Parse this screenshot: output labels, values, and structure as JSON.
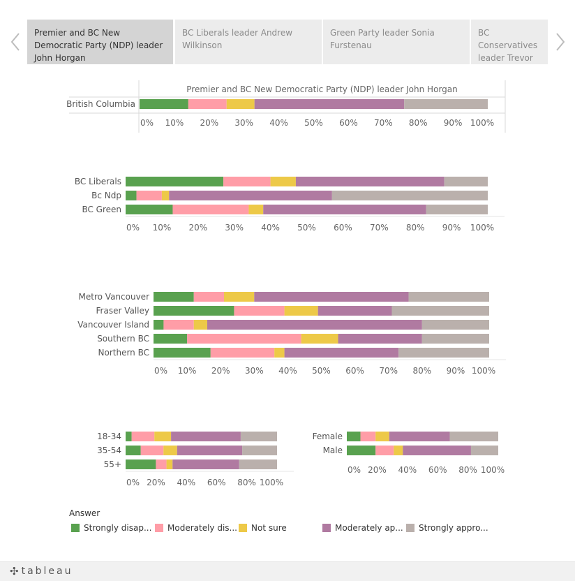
{
  "tabs": [
    {
      "label": "Premier and BC New Democratic Party (NDP) leader John Horgan",
      "active": true
    },
    {
      "label": "BC Liberals leader Andrew Wilkinson",
      "active": false
    },
    {
      "label": "Green Party leader Sonia Furstenau",
      "active": false
    },
    {
      "label": "BC Conservatives leader Trevor Bolin",
      "active": false
    }
  ],
  "nav": {
    "prev_icon": "chevron-left-icon",
    "next_icon": "chevron-right-icon"
  },
  "colors": {
    "strongly_disapprove": "#59a14f",
    "moderately_disapprove": "#ff9da7",
    "not_sure": "#edc948",
    "moderately_approve": "#b07aa1",
    "strongly_approve": "#bab0ac"
  },
  "legend": {
    "title": "Answer",
    "items": [
      {
        "label": "Strongly disap...",
        "color": "#59a14f"
      },
      {
        "label": "Moderately dis...",
        "color": "#ff9da7"
      },
      {
        "label": "Not sure",
        "color": "#edc948"
      },
      {
        "label": "Moderately ap...",
        "color": "#b07aa1"
      },
      {
        "label": "Strongly appro...",
        "color": "#bab0ac"
      }
    ]
  },
  "footer": {
    "brand": "tableau",
    "logo_icon": "tableau-logo-icon"
  },
  "chart_data": [
    {
      "type": "bar",
      "stacked": "percent",
      "orientation": "horizontal",
      "title": "Premier and BC New Democratic Party (NDP) leader John Horgan",
      "categories": [
        "British Columbia"
      ],
      "series": [
        {
          "name": "Strongly disap...",
          "values": [
            14
          ]
        },
        {
          "name": "Moderately dis...",
          "values": [
            11
          ]
        },
        {
          "name": "Not sure",
          "values": [
            8
          ]
        },
        {
          "name": "Moderately ap...",
          "values": [
            43
          ]
        },
        {
          "name": "Strongly appro...",
          "values": [
            24
          ]
        }
      ],
      "xticks": [
        "0%",
        "10%",
        "20%",
        "30%",
        "40%",
        "50%",
        "60%",
        "70%",
        "80%",
        "90%",
        "100%"
      ],
      "xlim": [
        0,
        100
      ]
    },
    {
      "type": "bar",
      "stacked": "percent",
      "orientation": "horizontal",
      "categories": [
        "BC Liberals",
        "Bc Ndp",
        "BC Green"
      ],
      "series": [
        {
          "name": "Strongly disap...",
          "values": [
            27,
            3,
            13
          ]
        },
        {
          "name": "Moderately dis...",
          "values": [
            13,
            7,
            21
          ]
        },
        {
          "name": "Not sure",
          "values": [
            7,
            2,
            4
          ]
        },
        {
          "name": "Moderately ap...",
          "values": [
            41,
            45,
            45
          ]
        },
        {
          "name": "Strongly appro...",
          "values": [
            12,
            43,
            17
          ]
        }
      ],
      "xticks": [
        "0%",
        "10%",
        "20%",
        "30%",
        "40%",
        "50%",
        "60%",
        "70%",
        "80%",
        "90%",
        "100%"
      ],
      "xlim": [
        0,
        100
      ]
    },
    {
      "type": "bar",
      "stacked": "percent",
      "orientation": "horizontal",
      "categories": [
        "Metro Vancouver",
        "Fraser Valley",
        "Vancouver Island",
        "Southern BC",
        "Northern BC"
      ],
      "series": [
        {
          "name": "Strongly disap...",
          "values": [
            12,
            24,
            3,
            10,
            17
          ]
        },
        {
          "name": "Moderately dis...",
          "values": [
            9,
            15,
            9,
            34,
            19
          ]
        },
        {
          "name": "Not sure",
          "values": [
            9,
            10,
            4,
            11,
            3
          ]
        },
        {
          "name": "Moderately ap...",
          "values": [
            46,
            22,
            64,
            25,
            34
          ]
        },
        {
          "name": "Strongly appro...",
          "values": [
            24,
            29,
            20,
            20,
            27
          ]
        }
      ],
      "xticks": [
        "0%",
        "10%",
        "20%",
        "30%",
        "40%",
        "50%",
        "60%",
        "70%",
        "80%",
        "90%",
        "100%"
      ],
      "xlim": [
        0,
        100
      ]
    },
    {
      "type": "bar",
      "stacked": "percent",
      "orientation": "horizontal",
      "categories": [
        "18-34",
        "35-54",
        "55+"
      ],
      "series": [
        {
          "name": "Strongly disap...",
          "values": [
            4,
            10,
            20
          ]
        },
        {
          "name": "Moderately dis...",
          "values": [
            15,
            15,
            7
          ]
        },
        {
          "name": "Not sure",
          "values": [
            11,
            9,
            4
          ]
        },
        {
          "name": "Moderately ap...",
          "values": [
            46,
            43,
            44
          ]
        },
        {
          "name": "Strongly appro...",
          "values": [
            24,
            23,
            25
          ]
        }
      ],
      "xticks": [
        "0%",
        "20%",
        "40%",
        "60%",
        "80%",
        "100%"
      ],
      "xlim": [
        0,
        100
      ]
    },
    {
      "type": "bar",
      "stacked": "percent",
      "orientation": "horizontal",
      "categories": [
        "Female",
        "Male"
      ],
      "series": [
        {
          "name": "Strongly disap...",
          "values": [
            9,
            19
          ]
        },
        {
          "name": "Moderately dis...",
          "values": [
            10,
            12
          ]
        },
        {
          "name": "Not sure",
          "values": [
            9,
            6
          ]
        },
        {
          "name": "Moderately ap...",
          "values": [
            40,
            45
          ]
        },
        {
          "name": "Strongly appro...",
          "values": [
            32,
            18
          ]
        }
      ],
      "xticks": [
        "0%",
        "20%",
        "40%",
        "60%",
        "80%",
        "100%"
      ],
      "xlim": [
        0,
        100
      ]
    }
  ]
}
